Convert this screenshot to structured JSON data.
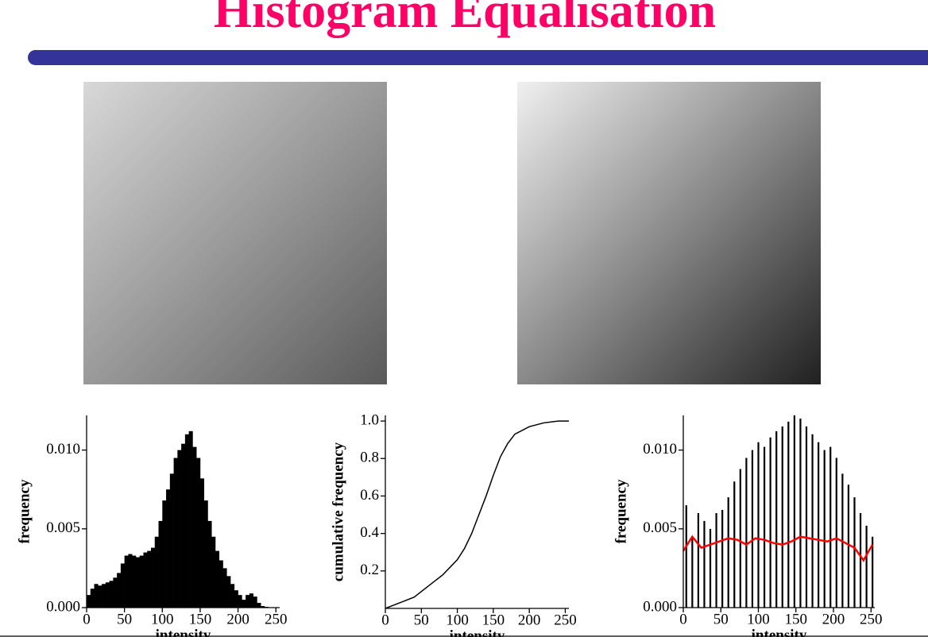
{
  "title": "Histogram Equalisation",
  "chart_data": [
    {
      "type": "histogram",
      "xlabel": "intensity",
      "ylabel": "frequency",
      "color": "#000000",
      "bins": [
        0,
        5,
        10,
        15,
        20,
        25,
        30,
        35,
        40,
        45,
        50,
        55,
        60,
        65,
        70,
        75,
        80,
        85,
        90,
        95,
        100,
        105,
        110,
        115,
        120,
        125,
        130,
        135,
        140,
        145,
        150,
        155,
        160,
        165,
        170,
        175,
        180,
        185,
        190,
        195,
        200,
        205,
        210,
        215,
        220,
        225,
        230,
        235,
        240,
        245,
        250,
        255
      ],
      "values": [
        0.0008,
        0.0012,
        0.0015,
        0.0014,
        0.0015,
        0.0016,
        0.0017,
        0.0019,
        0.0022,
        0.0028,
        0.0033,
        0.0034,
        0.0033,
        0.0032,
        0.0033,
        0.0035,
        0.0036,
        0.0038,
        0.0045,
        0.0055,
        0.0068,
        0.0075,
        0.0085,
        0.0095,
        0.01,
        0.0104,
        0.011,
        0.0112,
        0.0102,
        0.0095,
        0.0082,
        0.0068,
        0.0055,
        0.0045,
        0.0036,
        0.003,
        0.0025,
        0.002,
        0.0015,
        0.0011,
        0.0008,
        0.0005,
        0.0008,
        0.0009,
        0.0007,
        0.0003,
        0.0001,
        5e-05,
        0,
        0,
        0
      ],
      "xlim": [
        0,
        255
      ],
      "xticks": [
        0,
        50,
        100,
        150,
        200,
        250
      ],
      "ylim": [
        0,
        0.0122
      ],
      "yticks": [
        {
          "value": 0,
          "label": "0.000"
        },
        {
          "value": 0.005,
          "label": "0.005"
        },
        {
          "value": 0.01,
          "label": "0.010"
        }
      ]
    },
    {
      "type": "line",
      "xlabel": "intensity",
      "ylabel": "cumulative frequency",
      "series": [
        {
          "color": "#000000",
          "x": [
            0,
            20,
            40,
            60,
            80,
            100,
            110,
            120,
            130,
            140,
            150,
            160,
            170,
            180,
            200,
            220,
            240,
            255
          ],
          "values": [
            0,
            0.03,
            0.06,
            0.12,
            0.18,
            0.26,
            0.32,
            0.4,
            0.5,
            0.6,
            0.71,
            0.81,
            0.88,
            0.93,
            0.97,
            0.99,
            1.0,
            1.0
          ]
        }
      ],
      "xlim": [
        0,
        255
      ],
      "xticks": [
        0,
        50,
        100,
        150,
        200,
        250
      ],
      "ylim": [
        0,
        1.03
      ],
      "yticks": [
        0.2,
        0.4,
        0.6,
        0.8,
        {
          "value": 1,
          "label": "1.0"
        }
      ]
    },
    {
      "type": "spike",
      "xlabel": "intensity",
      "ylabel": "frequency",
      "series": [
        {
          "type": "spike",
          "color": "#000000",
          "x": [
            4,
            12,
            20,
            28,
            36,
            44,
            52,
            60,
            68,
            76,
            84,
            92,
            100,
            108,
            116,
            124,
            132,
            140,
            148,
            156,
            164,
            172,
            180,
            188,
            196,
            204,
            212,
            220,
            228,
            236,
            244,
            252
          ],
          "values": [
            0.0065,
            0.0045,
            0.006,
            0.0055,
            0.005,
            0.006,
            0.0062,
            0.007,
            0.008,
            0.0088,
            0.0095,
            0.01,
            0.0105,
            0.0102,
            0.0108,
            0.0112,
            0.0115,
            0.0118,
            0.0122,
            0.012,
            0.0115,
            0.011,
            0.0105,
            0.01,
            0.0102,
            0.0095,
            0.0085,
            0.0078,
            0.007,
            0.006,
            0.0052,
            0.0045
          ]
        },
        {
          "type": "line",
          "color": "#ff0000",
          "x": [
            0,
            12,
            24,
            36,
            48,
            60,
            72,
            84,
            96,
            108,
            120,
            132,
            144,
            156,
            168,
            180,
            192,
            204,
            216,
            228,
            240,
            252
          ],
          "values": [
            0.0036,
            0.0045,
            0.0038,
            0.004,
            0.0042,
            0.0044,
            0.0043,
            0.004,
            0.0044,
            0.0043,
            0.0041,
            0.004,
            0.0042,
            0.0045,
            0.0044,
            0.0043,
            0.0042,
            0.0044,
            0.0041,
            0.0038,
            0.003,
            0.004
          ]
        }
      ],
      "xlim": [
        0,
        255
      ],
      "xticks": [
        0,
        50,
        100,
        150,
        200,
        250
      ],
      "ylim": [
        0,
        0.0122
      ],
      "yticks": [
        {
          "value": 0,
          "label": "0.000"
        },
        {
          "value": 0.005,
          "label": "0.005"
        },
        {
          "value": 0.01,
          "label": "0.010"
        }
      ]
    }
  ]
}
